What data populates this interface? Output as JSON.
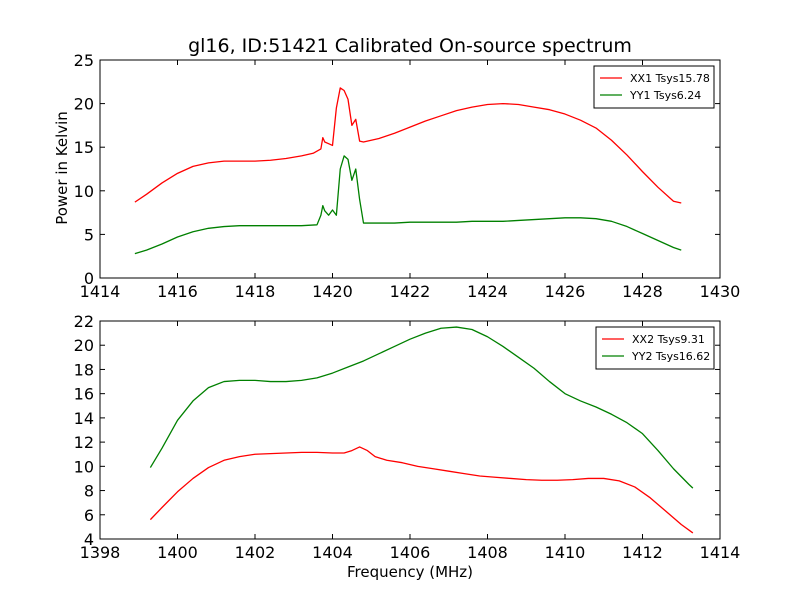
{
  "figure": {
    "title": "gl16, ID:51421 Calibrated On-source spectrum",
    "ylabel": "Power in Kelvin",
    "xlabel": "Frequency (MHz)"
  },
  "chart_data": [
    {
      "type": "line",
      "title": "gl16, ID:51421 Calibrated On-source spectrum",
      "xlabel": "",
      "ylabel": "Power in Kelvin",
      "xlim": [
        1414,
        1430
      ],
      "ylim": [
        0,
        25
      ],
      "xticks": [
        1414,
        1416,
        1418,
        1420,
        1422,
        1424,
        1426,
        1428,
        1430
      ],
      "yticks": [
        0,
        5,
        10,
        15,
        20,
        25
      ],
      "grid": false,
      "legend": "top-right",
      "series": [
        {
          "name": "XX1 Tsys15.78",
          "color": "#ff0000",
          "x": [
            1414.9,
            1415.2,
            1415.6,
            1416.0,
            1416.4,
            1416.8,
            1417.2,
            1417.6,
            1418.0,
            1418.4,
            1418.8,
            1419.2,
            1419.5,
            1419.7,
            1419.75,
            1419.8,
            1419.9,
            1420.0,
            1420.1,
            1420.2,
            1420.3,
            1420.4,
            1420.5,
            1420.6,
            1420.7,
            1420.8,
            1421.2,
            1421.6,
            1422.0,
            1422.4,
            1422.8,
            1423.2,
            1423.6,
            1424.0,
            1424.4,
            1424.8,
            1425.2,
            1425.6,
            1426.0,
            1426.4,
            1426.8,
            1427.2,
            1427.6,
            1428.0,
            1428.4,
            1428.8,
            1429.0
          ],
          "y": [
            8.7,
            9.6,
            10.9,
            12.0,
            12.8,
            13.2,
            13.4,
            13.4,
            13.4,
            13.5,
            13.7,
            14.0,
            14.3,
            14.8,
            16.1,
            15.6,
            15.4,
            15.2,
            19.5,
            21.8,
            21.5,
            20.5,
            17.5,
            18.2,
            15.7,
            15.6,
            16.0,
            16.6,
            17.3,
            18.0,
            18.6,
            19.2,
            19.6,
            19.9,
            20.0,
            19.9,
            19.6,
            19.3,
            18.8,
            18.1,
            17.2,
            15.8,
            14.1,
            12.2,
            10.4,
            8.8,
            8.6
          ]
        },
        {
          "name": "YY1 Tsys6.24",
          "color": "#008000",
          "x": [
            1414.9,
            1415.2,
            1415.6,
            1416.0,
            1416.4,
            1416.8,
            1417.2,
            1417.6,
            1418.0,
            1418.4,
            1418.8,
            1419.2,
            1419.6,
            1419.7,
            1419.75,
            1419.8,
            1419.9,
            1420.0,
            1420.1,
            1420.2,
            1420.3,
            1420.4,
            1420.5,
            1420.6,
            1420.7,
            1420.8,
            1421.2,
            1421.6,
            1422.0,
            1422.4,
            1422.8,
            1423.2,
            1423.6,
            1424.0,
            1424.4,
            1424.8,
            1425.2,
            1425.6,
            1426.0,
            1426.4,
            1426.8,
            1427.2,
            1427.6,
            1428.0,
            1428.4,
            1428.8,
            1429.0
          ],
          "y": [
            2.8,
            3.2,
            3.9,
            4.7,
            5.3,
            5.7,
            5.9,
            6.0,
            6.0,
            6.0,
            6.0,
            6.0,
            6.1,
            7.2,
            8.3,
            7.7,
            7.2,
            7.8,
            7.2,
            12.5,
            14.0,
            13.6,
            11.2,
            12.5,
            9.0,
            6.3,
            6.3,
            6.3,
            6.4,
            6.4,
            6.4,
            6.4,
            6.5,
            6.5,
            6.5,
            6.6,
            6.7,
            6.8,
            6.9,
            6.9,
            6.8,
            6.5,
            5.9,
            5.1,
            4.3,
            3.5,
            3.2
          ]
        }
      ]
    },
    {
      "type": "line",
      "title": "",
      "xlabel": "Frequency (MHz)",
      "ylabel": "",
      "xlim": [
        1398,
        1414
      ],
      "ylim": [
        4,
        22
      ],
      "xticks": [
        1398,
        1400,
        1402,
        1404,
        1406,
        1408,
        1410,
        1412,
        1414
      ],
      "yticks": [
        4,
        6,
        8,
        10,
        12,
        14,
        16,
        18,
        20,
        22
      ],
      "grid": false,
      "legend": "top-right",
      "series": [
        {
          "name": "XX2 Tsys9.31",
          "color": "#ff0000",
          "x": [
            1399.3,
            1399.6,
            1400.0,
            1400.4,
            1400.8,
            1401.2,
            1401.6,
            1402.0,
            1402.4,
            1402.8,
            1403.2,
            1403.6,
            1404.0,
            1404.3,
            1404.5,
            1404.7,
            1404.9,
            1405.1,
            1405.4,
            1405.8,
            1406.2,
            1406.6,
            1407.0,
            1407.4,
            1407.8,
            1408.2,
            1408.6,
            1409.0,
            1409.4,
            1409.8,
            1410.2,
            1410.6,
            1411.0,
            1411.4,
            1411.8,
            1412.2,
            1412.6,
            1413.0,
            1413.3
          ],
          "y": [
            5.6,
            6.6,
            7.9,
            9.0,
            9.9,
            10.5,
            10.8,
            11.0,
            11.05,
            11.1,
            11.15,
            11.15,
            11.1,
            11.1,
            11.3,
            11.6,
            11.3,
            10.8,
            10.5,
            10.3,
            10.0,
            9.8,
            9.6,
            9.4,
            9.2,
            9.1,
            9.0,
            8.9,
            8.85,
            8.85,
            8.9,
            9.0,
            9.0,
            8.8,
            8.3,
            7.4,
            6.3,
            5.2,
            4.5
          ]
        },
        {
          "name": "YY2 Tsys16.62",
          "color": "#008000",
          "x": [
            1399.3,
            1399.6,
            1400.0,
            1400.4,
            1400.8,
            1401.2,
            1401.6,
            1402.0,
            1402.4,
            1402.8,
            1403.2,
            1403.6,
            1404.0,
            1404.4,
            1404.8,
            1405.2,
            1405.6,
            1406.0,
            1406.4,
            1406.8,
            1407.2,
            1407.6,
            1408.0,
            1408.4,
            1408.8,
            1409.2,
            1409.6,
            1410.0,
            1410.4,
            1410.8,
            1411.2,
            1411.6,
            1412.0,
            1412.4,
            1412.8,
            1413.2,
            1413.3
          ],
          "y": [
            9.9,
            11.5,
            13.8,
            15.4,
            16.5,
            17.0,
            17.1,
            17.1,
            17.0,
            17.0,
            17.1,
            17.3,
            17.7,
            18.2,
            18.7,
            19.3,
            19.9,
            20.5,
            21.0,
            21.4,
            21.5,
            21.3,
            20.7,
            19.9,
            19.0,
            18.1,
            17.0,
            16.0,
            15.4,
            14.9,
            14.3,
            13.6,
            12.7,
            11.3,
            9.8,
            8.5,
            8.2
          ]
        }
      ]
    }
  ]
}
